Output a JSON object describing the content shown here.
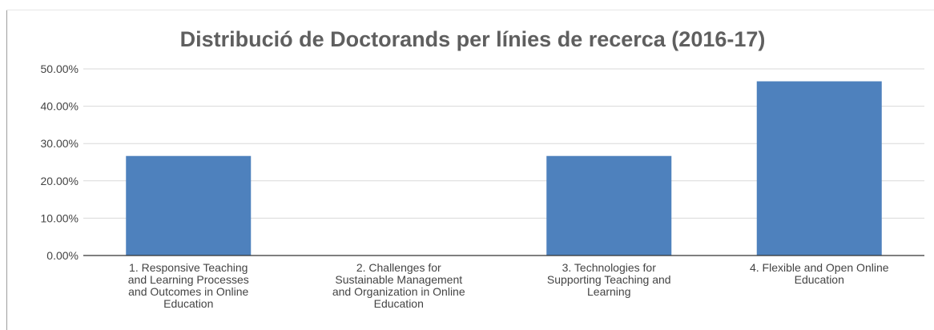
{
  "chart_data": {
    "type": "bar",
    "title": "Distribució de Doctorands per línies de recerca (2016-17)",
    "xlabel": "",
    "ylabel": "",
    "ylim": [
      0,
      50
    ],
    "y_ticks": [
      "0.00%",
      "10.00%",
      "20.00%",
      "30.00%",
      "40.00%",
      "50.00%"
    ],
    "y_tick_values": [
      0,
      10,
      20,
      30,
      40,
      50
    ],
    "categories": [
      "1. Responsive Teaching and Learning Processes and Outcomes in Online Education",
      "2. Challenges for Sustainable Management and Organization in Online Education",
      "3. Technologies for Supporting Teaching and Learning",
      "4. Flexible and Open Online Education"
    ],
    "category_lines": [
      [
        "1. Responsive Teaching",
        "and Learning Processes",
        "and Outcomes in Online",
        "Education"
      ],
      [
        "2. Challenges for",
        "Sustainable Management",
        "and Organization in Online",
        "Education"
      ],
      [
        "3. Technologies for",
        "Supporting Teaching and",
        "Learning"
      ],
      [
        "4. Flexible and Open Online",
        "Education"
      ]
    ],
    "values": [
      26.67,
      0,
      26.67,
      46.67
    ],
    "grid": true,
    "legend": "none",
    "colors": {
      "bar": "#4e81bd",
      "grid": "#d9d9d9",
      "axis": "#333333"
    }
  }
}
